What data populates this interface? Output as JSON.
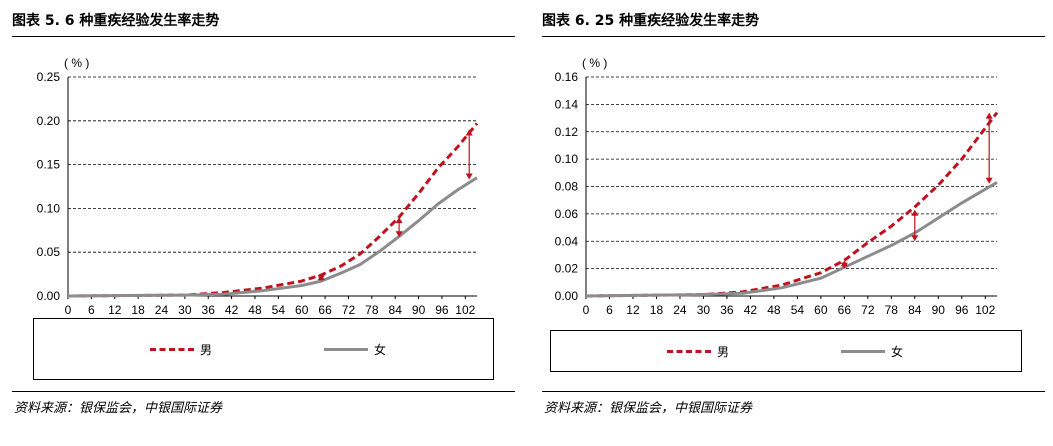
{
  "colors": {
    "male": "#C0111F",
    "female": "#8C8C8C",
    "grid": "#000000"
  },
  "chart_data": [
    {
      "type": "line",
      "title": "图表 5. 6 种重疾经验发生率走势",
      "ylabel": "( % )",
      "ylim": [
        0,
        0.25
      ],
      "yticks": [
        "0.00",
        "0.05",
        "0.10",
        "0.15",
        "0.20",
        "0.25"
      ],
      "xlim": [
        0,
        105
      ],
      "xticks": [
        0,
        6,
        12,
        18,
        24,
        30,
        36,
        42,
        48,
        54,
        60,
        66,
        72,
        78,
        84,
        90,
        96,
        102
      ],
      "grid": "horizontal dashed",
      "legend": "bottom",
      "series": [
        {
          "name": "男",
          "style": "dashed",
          "x": [
            0,
            30,
            40,
            50,
            60,
            65,
            70,
            75,
            80,
            85,
            90,
            95,
            100,
            105
          ],
          "values": [
            0,
            0.001,
            0.004,
            0.009,
            0.017,
            0.024,
            0.034,
            0.048,
            0.068,
            0.09,
            0.117,
            0.146,
            0.17,
            0.197
          ]
        },
        {
          "name": "女",
          "style": "solid",
          "x": [
            0,
            30,
            40,
            50,
            60,
            65,
            70,
            75,
            80,
            85,
            90,
            95,
            100,
            105
          ],
          "values": [
            0,
            0.001,
            0.002,
            0.006,
            0.012,
            0.017,
            0.026,
            0.036,
            0.051,
            0.068,
            0.086,
            0.105,
            0.121,
            0.135
          ]
        }
      ],
      "annotations": [
        {
          "x": 65,
          "from": 0.025,
          "to": 0.017
        },
        {
          "x": 85,
          "from": 0.09,
          "to": 0.067
        },
        {
          "x": 103,
          "from": 0.19,
          "to": 0.133
        }
      ],
      "legend_labels": {
        "male": "男",
        "female": "女"
      },
      "source": "资料来源：银保监会，中银国际证券"
    },
    {
      "type": "line",
      "title": "图表 6. 25 种重疾经验发生率走势",
      "ylabel": "( % )",
      "ylim": [
        0,
        0.16
      ],
      "yticks": [
        "0.00",
        "0.02",
        "0.04",
        "0.06",
        "0.08",
        "0.10",
        "0.12",
        "0.14",
        "0.16"
      ],
      "xlim": [
        0,
        105
      ],
      "xticks": [
        0,
        6,
        12,
        18,
        24,
        30,
        36,
        42,
        48,
        54,
        60,
        66,
        72,
        78,
        84,
        90,
        96,
        102
      ],
      "grid": "horizontal dashed",
      "legend": "bottom",
      "series": [
        {
          "name": "男",
          "style": "dashed",
          "x": [
            0,
            30,
            40,
            50,
            60,
            66,
            72,
            78,
            84,
            90,
            96,
            105
          ],
          "values": [
            0,
            0.001,
            0.003,
            0.008,
            0.017,
            0.026,
            0.039,
            0.051,
            0.065,
            0.081,
            0.1,
            0.134
          ]
        },
        {
          "name": "女",
          "style": "solid",
          "x": [
            0,
            30,
            40,
            50,
            60,
            66,
            72,
            78,
            84,
            90,
            96,
            105
          ],
          "values": [
            0,
            0.001,
            0.002,
            0.006,
            0.013,
            0.021,
            0.029,
            0.037,
            0.046,
            0.057,
            0.068,
            0.083
          ]
        }
      ],
      "annotations": [
        {
          "x": 66,
          "from": 0.026,
          "to": 0.02
        },
        {
          "x": 84,
          "from": 0.063,
          "to": 0.04
        },
        {
          "x": 103,
          "from": 0.134,
          "to": 0.082
        }
      ],
      "legend_labels": {
        "male": "男",
        "female": "女"
      },
      "source": "资料来源：银保监会，中银国际证券"
    }
  ]
}
